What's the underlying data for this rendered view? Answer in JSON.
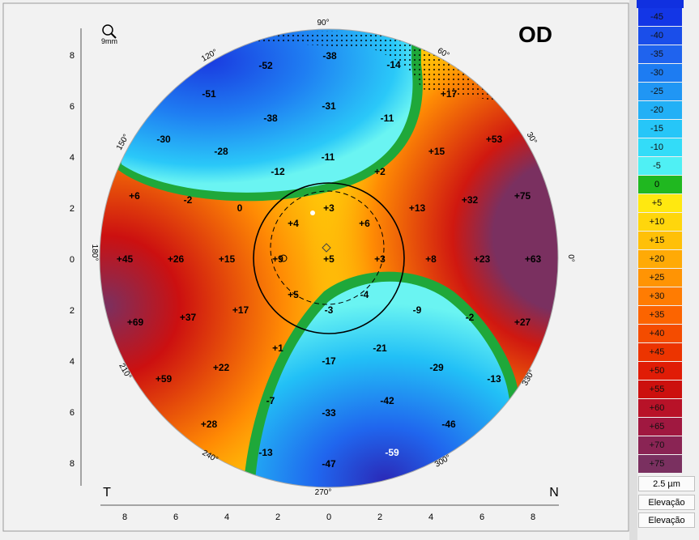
{
  "eye_label": "OD",
  "zoom_label": "9mm",
  "corner_left": "T",
  "corner_right": "N",
  "unit_step": "2.5 µm",
  "map_type_1": "Elevação",
  "map_type_2": "Elevação",
  "degree_labels": [
    "0°",
    "30°",
    "60°",
    "90°",
    "120°",
    "150°",
    "180°",
    "210°",
    "240°",
    "270°",
    "300°",
    "330°"
  ],
  "y_ticks": [
    "8",
    "6",
    "4",
    "2",
    "0",
    "2",
    "4",
    "6",
    "8"
  ],
  "x_ticks": [
    "8",
    "6",
    "4",
    "2",
    "0",
    "2",
    "4",
    "6",
    "8"
  ],
  "map_values": [
    "-52",
    "-38",
    "-14",
    "-51",
    "-31",
    "+17",
    "-38",
    "-11",
    "-30",
    "-28",
    "-11",
    "+15",
    "+53",
    "-12",
    "+2",
    "+6",
    "-2",
    "0",
    "+3",
    "+13",
    "+32",
    "+75",
    "+4",
    "+6",
    "+45",
    "+26",
    "+15",
    "+9",
    "+5",
    "+3",
    "+8",
    "+23",
    "+63",
    "+5",
    "-4",
    "-3",
    "-9",
    "-2",
    "+27",
    "+17",
    "+69",
    "+37",
    "+1",
    "-21",
    "-17",
    "-29",
    "+22",
    "-13",
    "+59",
    "-7",
    "-42",
    "-33",
    "-46",
    "+28",
    "-13",
    "-47",
    "-59"
  ],
  "legend": [
    {
      "label": "-45",
      "color": "#1336e6"
    },
    {
      "label": "-40",
      "color": "#1a4eea"
    },
    {
      "label": "-35",
      "color": "#1f63ee"
    },
    {
      "label": "-30",
      "color": "#1d7cf2"
    },
    {
      "label": "-25",
      "color": "#2096f4"
    },
    {
      "label": "-20",
      "color": "#22b0f6"
    },
    {
      "label": "-15",
      "color": "#26c6f8"
    },
    {
      "label": "-10",
      "color": "#33dcf8"
    },
    {
      "label": "-5",
      "color": "#4ff0f4"
    },
    {
      "label": "0",
      "color": "#20b820"
    },
    {
      "label": "+5",
      "color": "#ffe810"
    },
    {
      "label": "+10",
      "color": "#ffd60c"
    },
    {
      "label": "+15",
      "color": "#ffc008"
    },
    {
      "label": "+20",
      "color": "#ffaa06"
    },
    {
      "label": "+25",
      "color": "#ff9404"
    },
    {
      "label": "+30",
      "color": "#ff7c02"
    },
    {
      "label": "+35",
      "color": "#fc6400"
    },
    {
      "label": "+40",
      "color": "#f44c00"
    },
    {
      "label": "+45",
      "color": "#ec3400"
    },
    {
      "label": "+50",
      "color": "#e01c06"
    },
    {
      "label": "+55",
      "color": "#cc100e"
    },
    {
      "label": "+60",
      "color": "#b81228"
    },
    {
      "label": "+65",
      "color": "#a01840"
    },
    {
      "label": "+70",
      "color": "#8a2454"
    },
    {
      "label": "+75",
      "color": "#7a3060"
    }
  ]
}
